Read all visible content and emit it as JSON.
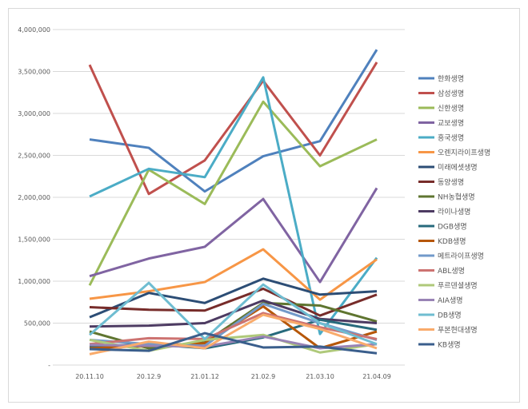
{
  "chart_data": {
    "type": "line",
    "title": "",
    "xlabel": "",
    "ylabel": "",
    "ylim": [
      0,
      4000000
    ],
    "grid": true,
    "legend_position": "right",
    "y_ticks": [
      "-",
      "500,000",
      "1,000,000",
      "1,500,000",
      "2,000,000",
      "2,500,000",
      "3,000,000",
      "3,500,000",
      "4,000,000"
    ],
    "categories": [
      "20.11.10",
      "20.12.9",
      "21.01.12",
      "21.02.9",
      "21.03.10",
      "21.04.09"
    ],
    "series": [
      {
        "name": "한화생명",
        "color": "#4f81bd",
        "values": [
          2690000,
          2590000,
          2070000,
          2490000,
          2670000,
          3760000
        ]
      },
      {
        "name": "삼성생명",
        "color": "#c0504d",
        "values": [
          3580000,
          2040000,
          2440000,
          3390000,
          2500000,
          3610000
        ]
      },
      {
        "name": "신한생명",
        "color": "#9bbb59",
        "values": [
          950000,
          2330000,
          1920000,
          3140000,
          2370000,
          2690000
        ]
      },
      {
        "name": "교보생명",
        "color": "#8064a2",
        "values": [
          1060000,
          1270000,
          1410000,
          1980000,
          990000,
          2110000
        ]
      },
      {
        "name": "흥국생명",
        "color": "#4bacc6",
        "values": [
          2010000,
          2340000,
          2240000,
          3430000,
          370000,
          1280000
        ]
      },
      {
        "name": "오렌지라이프생명",
        "color": "#f79646",
        "values": [
          790000,
          880000,
          990000,
          1380000,
          780000,
          1260000
        ]
      },
      {
        "name": "미래에셋생명",
        "color": "#2c4d75",
        "values": [
          570000,
          860000,
          740000,
          1030000,
          840000,
          880000
        ]
      },
      {
        "name": "동양생명",
        "color": "#772c2a",
        "values": [
          690000,
          660000,
          650000,
          910000,
          590000,
          840000
        ]
      },
      {
        "name": "NH농협생명",
        "color": "#5f7530",
        "values": [
          400000,
          200000,
          270000,
          740000,
          710000,
          520000
        ]
      },
      {
        "name": "라이나생명",
        "color": "#4d3b62",
        "values": [
          460000,
          470000,
          500000,
          770000,
          550000,
          500000
        ]
      },
      {
        "name": "DGB생명",
        "color": "#276a7c",
        "values": [
          220000,
          250000,
          200000,
          330000,
          540000,
          420000
        ]
      },
      {
        "name": "KDB생명",
        "color": "#b65708",
        "values": [
          200000,
          230000,
          260000,
          700000,
          200000,
          400000
        ]
      },
      {
        "name": "메트라이프생명",
        "color": "#729aca",
        "values": [
          300000,
          250000,
          230000,
          730000,
          500000,
          300000
        ]
      },
      {
        "name": "ABL생명",
        "color": "#cd7371",
        "values": [
          250000,
          320000,
          310000,
          620000,
          450000,
          310000
        ]
      },
      {
        "name": "푸르덴셜생명",
        "color": "#afc97a",
        "values": [
          300000,
          170000,
          300000,
          360000,
          150000,
          250000
        ]
      },
      {
        "name": "AIA생명",
        "color": "#9983b5",
        "values": [
          240000,
          230000,
          220000,
          340000,
          200000,
          250000
        ]
      },
      {
        "name": "DB생명",
        "color": "#6fbdd1",
        "values": [
          360000,
          980000,
          310000,
          960000,
          500000,
          250000
        ]
      },
      {
        "name": "푸본현대생명",
        "color": "#f9ab6b",
        "values": [
          130000,
          280000,
          200000,
          600000,
          430000,
          200000
        ]
      },
      {
        "name": "KB생명",
        "color": "#3a5e8c",
        "values": [
          190000,
          170000,
          380000,
          210000,
          220000,
          140000
        ]
      }
    ]
  }
}
